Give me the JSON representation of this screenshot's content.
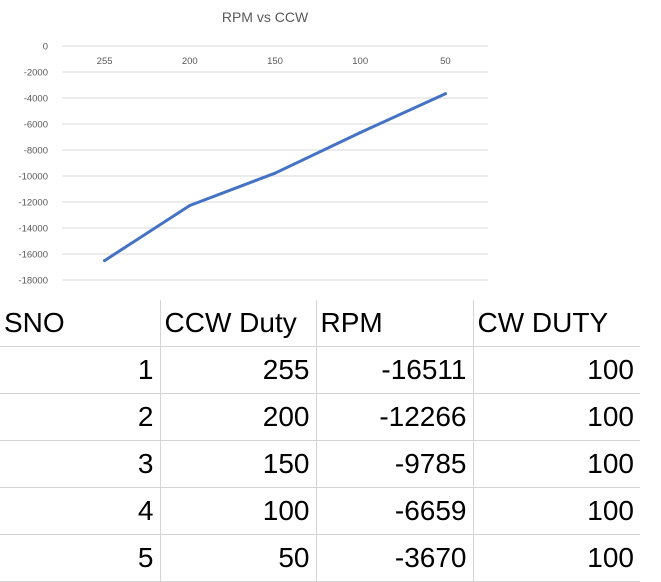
{
  "chart_data": {
    "type": "line",
    "title": "RPM vs CCW",
    "categories": [
      "255",
      "200",
      "150",
      "100",
      "50"
    ],
    "series": [
      {
        "values": [
          -16511,
          -12266,
          -9785,
          -6659,
          -3670
        ]
      }
    ],
    "ylim": [
      -18000,
      0
    ],
    "yticks": [
      0,
      -2000,
      -4000,
      -6000,
      -8000,
      -10000,
      -12000,
      -14000,
      -16000,
      -18000
    ],
    "grid": true,
    "legend": "none",
    "line_color": "#4472c4",
    "grid_color": "#d9d9d9"
  },
  "table": {
    "headers": [
      "SNO",
      "CCW Duty",
      "RPM",
      "CW DUTY"
    ],
    "rows": [
      [
        "1",
        "255",
        "-16511",
        "100"
      ],
      [
        "2",
        "200",
        "-12266",
        "100"
      ],
      [
        "3",
        "150",
        "-9785",
        "100"
      ],
      [
        "4",
        "100",
        "-6659",
        "100"
      ],
      [
        "5",
        "50",
        "-3670",
        "100"
      ]
    ]
  }
}
